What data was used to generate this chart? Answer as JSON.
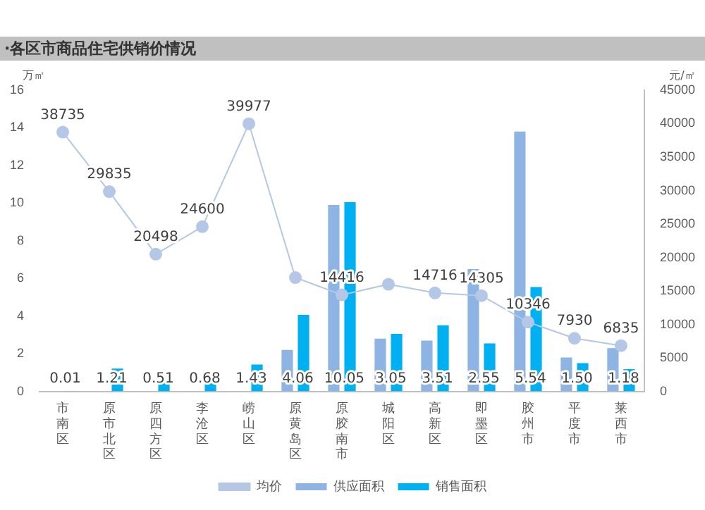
{
  "chart_data": {
    "type": "bar",
    "title": "·各区市商品住宅供销价情况",
    "ylabel": "万㎡",
    "y2label": "元/㎡",
    "categories": [
      "市南区",
      "原市北区",
      "原四方区",
      "李沧区",
      "崂山区",
      "原黄岛区",
      "原胶南市",
      "城阳区",
      "高新区",
      "即墨区",
      "胶州市",
      "平度市",
      "莱西市"
    ],
    "series": [
      {
        "name": "供应面积",
        "type": "bar",
        "color": "#8db4e2",
        "values": [
          0,
          0,
          0,
          0,
          0,
          2.2,
          9.9,
          2.8,
          2.7,
          6.5,
          13.8,
          1.8,
          2.3
        ]
      },
      {
        "name": "销售面积",
        "type": "bar",
        "color": "#00b0f0",
        "values": [
          0.01,
          1.21,
          0.51,
          0.68,
          1.43,
          4.06,
          10.05,
          3.05,
          3.51,
          2.55,
          5.54,
          1.5,
          1.18
        ],
        "value_labels": [
          "0.01",
          "1.21",
          "0.51",
          "0.68",
          "1.43",
          "4.06",
          "10.05",
          "3.05",
          "3.51",
          "2.55",
          "5.54",
          "1.50",
          "1.18"
        ]
      },
      {
        "name": "均价",
        "type": "line",
        "axis": "y2",
        "color": "#b4c7e7",
        "marker": "circle",
        "values": [
          38735,
          29835,
          20498,
          24600,
          39977,
          17000,
          14416,
          16000,
          14716,
          14305,
          10346,
          7930,
          6835
        ],
        "value_labels": [
          "38735",
          "29835",
          "20498",
          "24600",
          "39977",
          null,
          "14416",
          null,
          "14716",
          "14305",
          "10346",
          "7930",
          "6835"
        ]
      }
    ],
    "ylim": [
      0,
      16
    ],
    "yticks": [
      0,
      2,
      4,
      6,
      8,
      10,
      12,
      14,
      16
    ],
    "y2lim": [
      0,
      45000
    ],
    "y2ticks": [
      0,
      5000,
      10000,
      15000,
      20000,
      25000,
      30000,
      35000,
      40000,
      45000
    ],
    "grid": false,
    "legend": "bottom"
  }
}
